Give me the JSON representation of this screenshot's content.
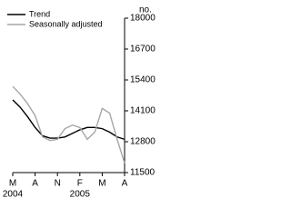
{
  "chart_data": {
    "type": "line",
    "y_unit": "no.",
    "categories": [
      "M",
      null,
      null,
      "A",
      null,
      null,
      "N",
      null,
      null,
      "F",
      null,
      null,
      "M",
      null,
      null,
      "A"
    ],
    "year_labels": [
      "2004",
      null,
      null,
      null,
      null,
      null,
      null,
      null,
      null,
      "2005",
      null,
      null,
      null,
      null,
      null,
      null
    ],
    "series": [
      {
        "name": "Trend",
        "color": "#000000",
        "values": [
          14560,
          14250,
          13850,
          13400,
          13050,
          12950,
          12950,
          13000,
          13150,
          13300,
          13400,
          13400,
          13350,
          13200,
          13000,
          12900
        ]
      },
      {
        "name": "Seasonally adjusted",
        "color": "#a6a6a6",
        "values": [
          15130,
          14800,
          14400,
          13900,
          13000,
          12850,
          12900,
          13350,
          13500,
          13400,
          12900,
          13200,
          14200,
          14000,
          12900,
          11900
        ]
      }
    ],
    "ylim": [
      11500,
      18000
    ],
    "yticks": [
      11500,
      12800,
      14100,
      15400,
      16700,
      18000
    ],
    "legend": "top-left"
  }
}
